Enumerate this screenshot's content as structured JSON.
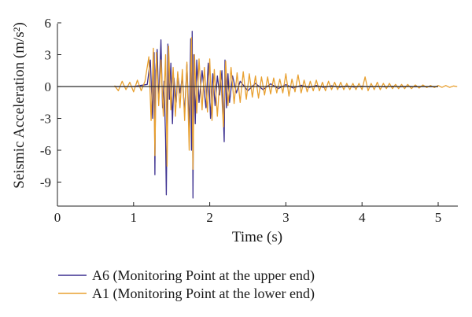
{
  "chart_data": {
    "type": "line",
    "title": "",
    "xlabel": "Time (s)",
    "ylabel": "Seismic Acceleration (m/s²)",
    "xlim": [
      0,
      5.3
    ],
    "ylim": [
      -11,
      6
    ],
    "xticks": [
      "0",
      "1",
      "2",
      "3",
      "4",
      "5"
    ],
    "yticks": [
      "6",
      "3",
      "0",
      "-3",
      "-6",
      "-9"
    ],
    "legend_position": "bottom-left",
    "grid": false,
    "series": [
      {
        "name": "A6 (Monitoring Point at the upper end)",
        "color": "#3b2f8f",
        "x": [
          0.75,
          1.0,
          1.18,
          1.22,
          1.25,
          1.27,
          1.28,
          1.29,
          1.31,
          1.33,
          1.36,
          1.38,
          1.4,
          1.42,
          1.43,
          1.45,
          1.47,
          1.49,
          1.51,
          1.53,
          1.56,
          1.58,
          1.61,
          1.64,
          1.67,
          1.7,
          1.73,
          1.75,
          1.76,
          1.77,
          1.78,
          1.79,
          1.81,
          1.83,
          1.86,
          1.9,
          1.95,
          1.98,
          2.01,
          2.04,
          2.07,
          2.1,
          2.13,
          2.16,
          2.19,
          2.2,
          2.22,
          2.24,
          2.26,
          2.3,
          2.35,
          2.4,
          2.5,
          2.6,
          2.7,
          2.8,
          2.9,
          3.0,
          3.1,
          3.2,
          3.3,
          3.4,
          3.5,
          3.6,
          3.7,
          3.8,
          3.9,
          4.0,
          4.1,
          4.2,
          4.3,
          4.4,
          4.5,
          4.6,
          4.7,
          4.8,
          4.9,
          5.0
        ],
        "y": [
          0,
          0,
          0.2,
          2.5,
          -3,
          3.2,
          -8.3,
          1.5,
          3.5,
          -1.5,
          4.4,
          -2,
          0.5,
          -5,
          -10.2,
          4.0,
          -1.2,
          2.2,
          -3.5,
          0.8,
          -1.5,
          1.2,
          -0.6,
          0.9,
          -2.5,
          2.1,
          -4,
          4.5,
          -6,
          5.2,
          -10.5,
          3,
          -3.5,
          2.5,
          -1.5,
          1.5,
          -2,
          2.2,
          -3,
          1.2,
          -1.8,
          1.0,
          -0.8,
          1.5,
          -5.2,
          2.5,
          -2,
          1.2,
          -1.5,
          1.0,
          -0.6,
          0.5,
          -0.4,
          0.3,
          -0.3,
          0.25,
          -0.2,
          0.18,
          -0.15,
          0.12,
          -0.1,
          0.1,
          -0.08,
          0.07,
          -0.06,
          0.05,
          -0.05,
          0.04,
          -0.04,
          0.03,
          -0.03,
          0.03,
          -0.02,
          0.02,
          -0.02,
          0.01,
          -0.01,
          0
        ]
      },
      {
        "name": "A1 (Monitoring Point at the lower end)",
        "color": "#e8a030",
        "x": [
          0.75,
          0.8,
          0.85,
          0.9,
          0.95,
          1.0,
          1.05,
          1.1,
          1.15,
          1.2,
          1.23,
          1.26,
          1.28,
          1.3,
          1.33,
          1.36,
          1.39,
          1.42,
          1.44,
          1.46,
          1.49,
          1.52,
          1.55,
          1.58,
          1.61,
          1.64,
          1.67,
          1.7,
          1.73,
          1.76,
          1.78,
          1.8,
          1.83,
          1.86,
          1.9,
          1.93,
          1.97,
          2.0,
          2.03,
          2.06,
          2.1,
          2.14,
          2.18,
          2.21,
          2.24,
          2.28,
          2.32,
          2.36,
          2.4,
          2.44,
          2.48,
          2.52,
          2.56,
          2.6,
          2.64,
          2.68,
          2.72,
          2.76,
          2.8,
          2.84,
          2.88,
          2.92,
          2.96,
          3.0,
          3.04,
          3.08,
          3.12,
          3.16,
          3.2,
          3.24,
          3.28,
          3.32,
          3.36,
          3.4,
          3.44,
          3.48,
          3.52,
          3.56,
          3.6,
          3.64,
          3.68,
          3.72,
          3.76,
          3.8,
          3.84,
          3.88,
          3.92,
          3.96,
          4.0,
          4.04,
          4.08,
          4.12,
          4.16,
          4.2,
          4.24,
          4.28,
          4.32,
          4.36,
          4.4,
          4.44,
          4.48,
          4.52,
          4.56,
          4.6,
          4.65,
          4.7,
          4.75,
          4.8,
          4.85,
          4.9,
          4.95,
          5.0,
          5.05,
          5.1,
          5.15,
          5.2,
          5.25
        ],
        "y": [
          0.1,
          -0.4,
          0.5,
          -0.3,
          0.4,
          -0.5,
          0.6,
          -0.4,
          0.5,
          2.8,
          -3.2,
          3.6,
          -6.5,
          3.2,
          -1.8,
          2.5,
          -2.8,
          3.0,
          -7.5,
          3.8,
          -2.2,
          1.8,
          -2.8,
          1.4,
          -2,
          1.6,
          -3.2,
          2.3,
          -6,
          4.6,
          -7.8,
          3,
          -2.5,
          2.6,
          -2.2,
          1.8,
          -2.4,
          2.6,
          -3.2,
          1.6,
          -2.8,
          1.5,
          -3.8,
          2.4,
          -1.8,
          1.8,
          -1.6,
          1.3,
          -1.5,
          1.4,
          -1.2,
          1.2,
          -1.0,
          1.0,
          -1.1,
          0.9,
          -0.8,
          0.9,
          -0.7,
          0.8,
          -0.6,
          0.7,
          -0.6,
          1.2,
          -0.9,
          0.7,
          -0.5,
          1.1,
          -0.6,
          0.6,
          -0.5,
          0.5,
          -0.4,
          0.6,
          -0.4,
          0.4,
          -0.4,
          0.5,
          -0.3,
          0.4,
          -0.3,
          0.4,
          -0.3,
          0.3,
          -0.3,
          0.3,
          -0.3,
          0.3,
          -0.3,
          0.9,
          -0.4,
          0.3,
          -0.3,
          0.4,
          -0.3,
          0.3,
          -0.2,
          0.3,
          -0.2,
          0.2,
          -0.2,
          0.2,
          -0.2,
          0.2,
          -0.2,
          0.15,
          -0.15,
          0.15,
          -0.1,
          0.1,
          -0.1,
          0.1,
          -0.08,
          0.1,
          -0.08,
          0.05,
          0
        ]
      }
    ]
  }
}
